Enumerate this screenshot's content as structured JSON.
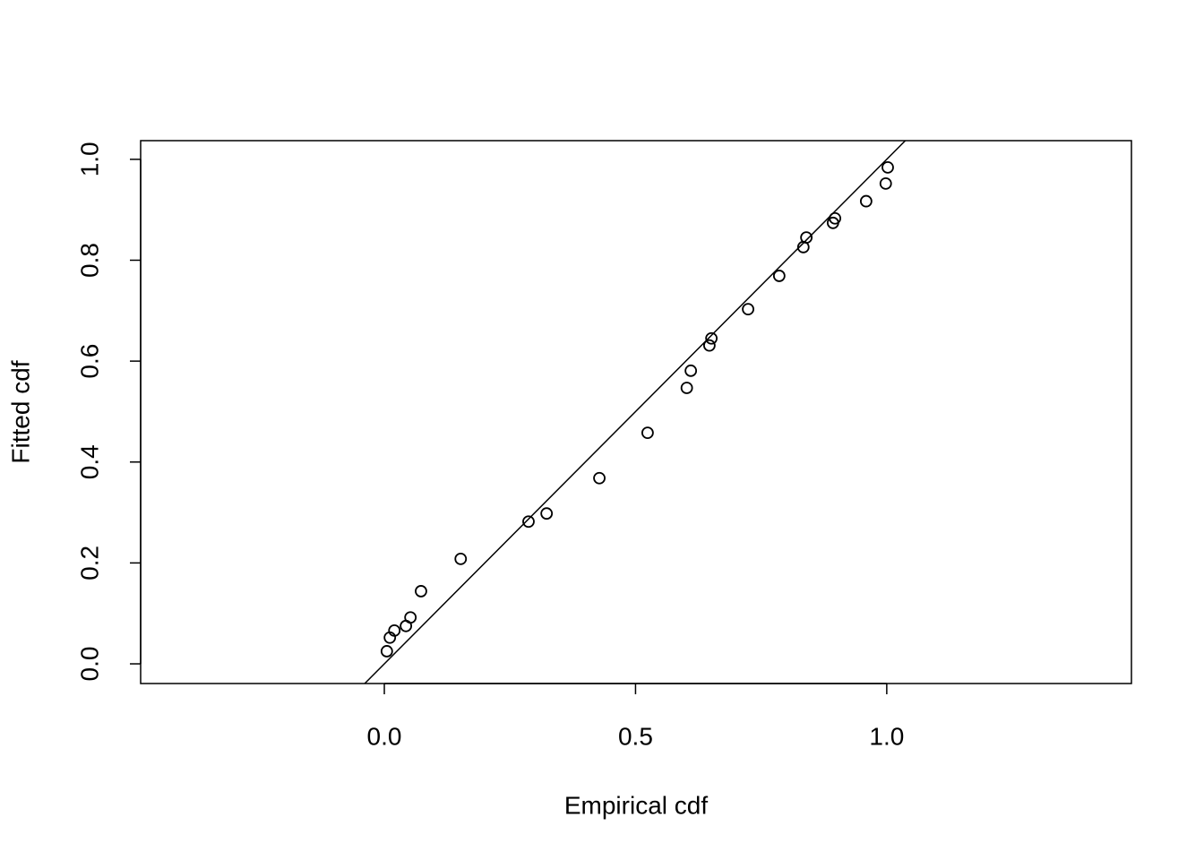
{
  "chart_data": {
    "type": "scatter",
    "xlabel": "Empirical cdf",
    "ylabel": "Fitted cdf",
    "x": [
      0.005,
      0.011,
      0.02,
      0.043,
      0.052,
      0.073,
      0.152,
      0.287,
      0.323,
      0.428,
      0.524,
      0.602,
      0.61,
      0.647,
      0.651,
      0.724,
      0.786,
      0.834,
      0.84,
      0.893,
      0.897,
      0.959,
      0.998,
      1.002
    ],
    "y": [
      0.025,
      0.052,
      0.066,
      0.075,
      0.092,
      0.144,
      0.208,
      0.282,
      0.298,
      0.368,
      0.458,
      0.547,
      0.581,
      0.631,
      0.645,
      0.703,
      0.769,
      0.826,
      0.845,
      0.874,
      0.883,
      0.917,
      0.952,
      0.984
    ],
    "color": "#000000",
    "xlim": [
      -0.485,
      1.487
    ],
    "ylim": [
      -0.039,
      1.037
    ],
    "xticks": [
      {
        "value": 0,
        "label": "0.0"
      },
      {
        "value": 0.5,
        "label": "0.5"
      },
      {
        "value": 1,
        "label": "1.0"
      }
    ],
    "yticks": [
      {
        "value": 0,
        "label": "0.0"
      },
      0.2,
      0.4,
      0.6,
      0.8,
      {
        "value": 1,
        "label": "1.0"
      }
    ]
  }
}
